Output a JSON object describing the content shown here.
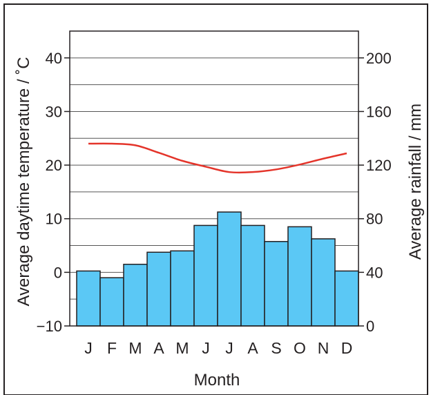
{
  "chart_data": {
    "type": "bar+line",
    "xlabel": "Month",
    "ylabel_left": "Average daytime temperature / ˚C",
    "ylabel_right": "Average rainfall / mm",
    "categories": [
      "J",
      "F",
      "M",
      "A",
      "M",
      "J",
      "J",
      "A",
      "S",
      "O",
      "N",
      "D"
    ],
    "left_axis": {
      "ylim": [
        -10,
        45
      ],
      "ticks": [
        -10,
        0,
        10,
        20,
        30,
        40
      ],
      "tick_labels": [
        "−10",
        "0",
        "10",
        "20",
        "30",
        "40"
      ]
    },
    "right_axis": {
      "ylim": [
        0,
        220
      ],
      "ticks": [
        0,
        40,
        80,
        120,
        160,
        200
      ],
      "tick_labels": [
        "0",
        "40",
        "80",
        "120",
        "160",
        "200"
      ]
    },
    "grid": true,
    "series": [
      {
        "kind": "bar",
        "axis": "right",
        "color": "#5bc8f5",
        "values": [
          41,
          36,
          46,
          55,
          56,
          75,
          85,
          75,
          63,
          74,
          65,
          41
        ]
      },
      {
        "kind": "line",
        "axis": "left",
        "color": "#e4342a",
        "values": [
          24.0,
          24.0,
          23.7,
          22.3,
          20.8,
          19.7,
          18.7,
          18.7,
          19.2,
          20.1,
          21.2,
          22.2
        ]
      }
    ]
  },
  "colors": {
    "bar": "#5bc8f5",
    "line": "#e4342a",
    "axis": "#231f20",
    "grid": "#555555"
  }
}
